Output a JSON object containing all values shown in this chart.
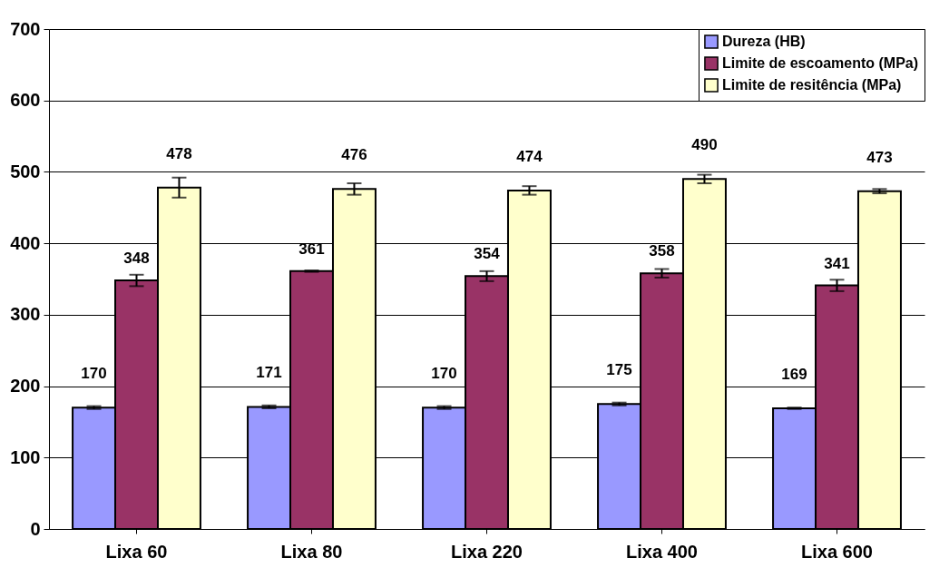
{
  "chart_data": {
    "type": "bar",
    "categories": [
      "Lixa 60",
      "Lixa 80",
      "Lixa 220",
      "Lixa 400",
      "Lixa 600"
    ],
    "series": [
      {
        "name": "Dureza (HB)",
        "color": "#9999ff",
        "values": [
          170,
          171,
          170,
          175,
          169
        ],
        "errors": [
          2,
          2,
          2,
          2,
          1
        ]
      },
      {
        "name": "Limite de escoamento (MPa)",
        "color": "#993366",
        "values": [
          348,
          361,
          354,
          358,
          341
        ],
        "errors": [
          8,
          1,
          7,
          6,
          8
        ]
      },
      {
        "name": "Limite de resitência (MPa)",
        "color": "#ffffcc",
        "values": [
          478,
          476,
          474,
          490,
          473
        ],
        "errors": [
          14,
          8,
          6,
          6,
          3
        ]
      }
    ],
    "ylim": [
      0,
      700
    ],
    "yticks": [
      0,
      100,
      200,
      300,
      400,
      500,
      600,
      700
    ],
    "grid": "y",
    "legend": "top right",
    "data_labels": true
  }
}
